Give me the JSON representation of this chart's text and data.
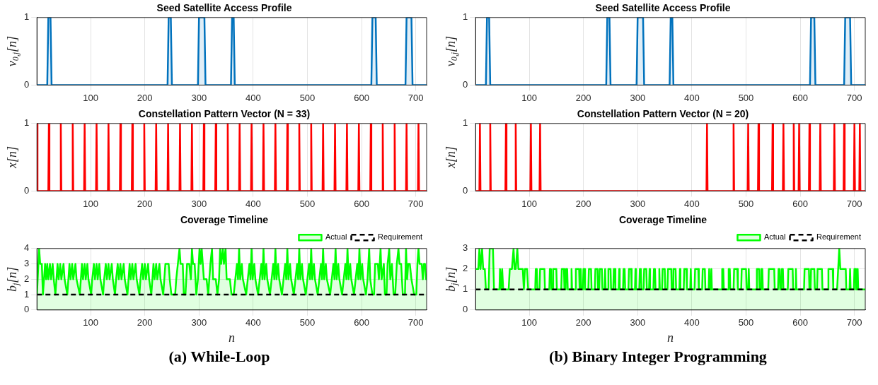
{
  "chart_data": [
    {
      "type": "area",
      "title": "Seed Satellite Access Profile",
      "ylabel": "v$_{0,j}$[n]",
      "xlim": [
        1,
        720
      ],
      "xticks": [
        100,
        200,
        300,
        400,
        500,
        600,
        700
      ],
      "ylim": [
        0,
        1
      ],
      "yticks": [
        0,
        1
      ],
      "grid": true,
      "marker": "none",
      "series": [
        {
          "color": "#0072bd",
          "x": [
            1,
            20,
            22,
            26,
            28,
            242,
            244,
            248,
            250,
            298,
            300,
            310,
            312,
            359,
            361,
            364,
            366,
            618,
            620,
            626,
            628,
            681,
            683,
            692,
            694,
            720
          ],
          "values": [
            0,
            0,
            1,
            1,
            0,
            0,
            1,
            1,
            0,
            0,
            1,
            1,
            0,
            0,
            1,
            1,
            0,
            0,
            1,
            1,
            0,
            0,
            1,
            1,
            0,
            0
          ]
        }
      ]
    },
    {
      "type": "area",
      "title": "Seed Satellite Access Profile",
      "ylabel": "v$_{0,j}$[n]",
      "xlim": [
        1,
        720
      ],
      "xticks": [
        100,
        200,
        300,
        400,
        500,
        600,
        700
      ],
      "ylim": [
        0,
        1
      ],
      "yticks": [
        0,
        1
      ],
      "grid": true,
      "marker": "none",
      "series": [
        {
          "color": "#0072bd",
          "x": [
            1,
            20,
            22,
            26,
            28,
            242,
            244,
            248,
            250,
            298,
            300,
            310,
            312,
            359,
            361,
            364,
            366,
            618,
            620,
            626,
            628,
            681,
            683,
            692,
            694,
            720
          ],
          "values": [
            0,
            0,
            1,
            1,
            0,
            0,
            1,
            1,
            0,
            0,
            1,
            1,
            0,
            0,
            1,
            1,
            0,
            0,
            1,
            1,
            0,
            0,
            1,
            1,
            0,
            0
          ]
        }
      ]
    },
    {
      "type": "line",
      "title": "Constellation Pattern Vector (N = 33)",
      "ylabel": "x[n]",
      "xlim": [
        1,
        720
      ],
      "xticks": [
        100,
        200,
        300,
        400,
        500,
        600,
        700
      ],
      "ylim": [
        0,
        1
      ],
      "yticks": [
        0,
        1
      ],
      "grid": true,
      "marker": "none",
      "series": [
        {
          "color": "#ff0000",
          "x": [
            1,
            2,
            22,
            23,
            24,
            44,
            45,
            46,
            66,
            67,
            68,
            88,
            89,
            90,
            110,
            111,
            112,
            132,
            133,
            134,
            154,
            155,
            156,
            176,
            177,
            178,
            198,
            199,
            200,
            220,
            221,
            222,
            242,
            243,
            244,
            264,
            265,
            266,
            286,
            287,
            288,
            308,
            309,
            310,
            330,
            331,
            332,
            352,
            353,
            354,
            374,
            375,
            376,
            396,
            397,
            398,
            418,
            419,
            420,
            440,
            441,
            442,
            462,
            463,
            464,
            484,
            485,
            486,
            506,
            507,
            508,
            528,
            529,
            530,
            550,
            551,
            552,
            572,
            573,
            574,
            594,
            595,
            596,
            616,
            617,
            618,
            638,
            639,
            640,
            660,
            661,
            662,
            682,
            683,
            684,
            704,
            705,
            706,
            720
          ],
          "values": [
            1,
            0,
            0,
            1,
            0,
            0,
            1,
            0,
            0,
            1,
            0,
            0,
            1,
            0,
            0,
            1,
            0,
            0,
            1,
            0,
            0,
            1,
            0,
            0,
            1,
            0,
            0,
            1,
            0,
            0,
            1,
            0,
            0,
            1,
            0,
            0,
            1,
            0,
            0,
            1,
            0,
            0,
            1,
            0,
            0,
            1,
            0,
            0,
            1,
            0,
            0,
            1,
            0,
            0,
            1,
            0,
            0,
            1,
            0,
            0,
            1,
            0,
            0,
            1,
            0,
            0,
            1,
            0,
            0,
            1,
            0,
            0,
            1,
            0,
            0,
            1,
            0,
            0,
            1,
            0,
            0,
            1,
            0,
            0,
            1,
            0,
            0,
            1,
            0,
            0,
            1,
            0,
            0,
            1,
            0,
            0,
            1,
            0,
            0
          ]
        }
      ]
    },
    {
      "type": "line",
      "title": "Constellation Pattern Vector (N = 20)",
      "ylabel": "x[n]",
      "xlim": [
        1,
        720
      ],
      "xticks": [
        100,
        200,
        300,
        400,
        500,
        600,
        700
      ],
      "ylim": [
        0,
        1
      ],
      "yticks": [
        0,
        1
      ],
      "grid": true,
      "marker": "none",
      "series": [
        {
          "color": "#ff0000",
          "x": [
            1,
            8,
            9,
            10,
            27,
            28,
            29,
            56,
            57,
            58,
            74,
            75,
            76,
            102,
            103,
            104,
            119,
            120,
            121,
            427,
            428,
            429,
            476,
            477,
            478,
            503,
            504,
            505,
            522,
            523,
            524,
            548,
            549,
            550,
            568,
            569,
            570,
            587,
            588,
            589,
            597,
            598,
            599,
            616,
            617,
            618,
            636,
            637,
            638,
            662,
            663,
            664,
            680,
            681,
            682,
            699,
            700,
            701,
            709,
            710,
            711,
            720
          ],
          "values": [
            0,
            0,
            1,
            0,
            0,
            1,
            0,
            0,
            1,
            0,
            0,
            1,
            0,
            0,
            1,
            0,
            0,
            1,
            0,
            0,
            1,
            0,
            0,
            1,
            0,
            0,
            1,
            0,
            0,
            1,
            0,
            0,
            1,
            0,
            0,
            1,
            0,
            0,
            1,
            0,
            0,
            1,
            0,
            0,
            1,
            0,
            0,
            1,
            0,
            0,
            1,
            0,
            0,
            1,
            0,
            0,
            1,
            0,
            0,
            1,
            0,
            0
          ]
        }
      ]
    },
    {
      "type": "area",
      "title": "Coverage Timeline",
      "xlabel": "n",
      "ylabel": "b$_{j}$[n]",
      "xlim": [
        1,
        720
      ],
      "xticks": [
        100,
        200,
        300,
        400,
        500,
        600,
        700
      ],
      "ylim": [
        0,
        4
      ],
      "yticks": [
        0,
        1,
        2,
        3,
        4
      ],
      "grid": true,
      "marker": "none",
      "legend": "top right",
      "annotations": [
        "(a) While-Loop"
      ],
      "series": [
        {
          "name": "Actual",
          "color": "#00ff00",
          "x": [
            1,
            5,
            7,
            10,
            12,
            14,
            16,
            18,
            20,
            22,
            25,
            27,
            30,
            32,
            35,
            37,
            39,
            41,
            44,
            46,
            50,
            52,
            57,
            59,
            61,
            63,
            66,
            68,
            72,
            74,
            80,
            82,
            84,
            86,
            89,
            91,
            94,
            96,
            101,
            103,
            106,
            108,
            111,
            113,
            116,
            118,
            123,
            125,
            128,
            130,
            133,
            135,
            139,
            141,
            145,
            147,
            150,
            152,
            155,
            157,
            161,
            163,
            168,
            170,
            172,
            174,
            177,
            179,
            183,
            185,
            190,
            192,
            195,
            197,
            200,
            202,
            206,
            208,
            212,
            214,
            216,
            218,
            221,
            223,
            227,
            229,
            234,
            236,
            238,
            244,
            246,
            249,
            256,
            258,
            261,
            264,
            266,
            270,
            272,
            275,
            278,
            282,
            285,
            287,
            289,
            292,
            295,
            298,
            301,
            303,
            305,
            307,
            309,
            314,
            317,
            319,
            321,
            324,
            326,
            331,
            334,
            337,
            339,
            341,
            344,
            346,
            349,
            351,
            357,
            360,
            364,
            367,
            370,
            372,
            374,
            376,
            379,
            381,
            387,
            390,
            393,
            395,
            397,
            399,
            402,
            404,
            409,
            412,
            415,
            417,
            419,
            421,
            424,
            426,
            431,
            434,
            437,
            439,
            441,
            443,
            446,
            448,
            453,
            456,
            459,
            461,
            463,
            465,
            468,
            470,
            475,
            478,
            481,
            483,
            485,
            487,
            490,
            492,
            497,
            500,
            503,
            505,
            507,
            509,
            512,
            514,
            519,
            522,
            525,
            527,
            529,
            531,
            534,
            536,
            542,
            545,
            548,
            550,
            552,
            554,
            557,
            559,
            564,
            567,
            570,
            572,
            574,
            576,
            579,
            581,
            586,
            589,
            592,
            594,
            596,
            598,
            601,
            603,
            608,
            611,
            614,
            616,
            620,
            623,
            625,
            630,
            632,
            635,
            637,
            641,
            643,
            646,
            648,
            651,
            653,
            656,
            659,
            662,
            665,
            668,
            670,
            673,
            676,
            680,
            682,
            684,
            686,
            689,
            692,
            697,
            701,
            703,
            705,
            707,
            711,
            713,
            715,
            717,
            719,
            720
          ],
          "values": [
            1,
            4,
            3,
            3,
            1,
            2,
            3,
            2,
            3,
            2,
            3,
            2,
            3,
            2,
            1,
            2,
            3,
            2,
            3,
            2,
            3,
            2,
            1,
            2,
            3,
            2,
            3,
            2,
            3,
            2,
            1,
            2,
            3,
            2,
            3,
            2,
            3,
            2,
            1,
            2,
            3,
            2,
            3,
            2,
            3,
            2,
            1,
            2,
            3,
            2,
            3,
            2,
            3,
            2,
            1,
            2,
            3,
            2,
            3,
            2,
            3,
            2,
            1,
            2,
            3,
            2,
            3,
            2,
            3,
            2,
            1,
            2,
            3,
            2,
            3,
            2,
            3,
            2,
            1,
            2,
            3,
            2,
            3,
            2,
            3,
            2,
            1,
            2,
            3,
            3,
            2,
            1,
            1,
            2,
            3,
            4,
            3,
            3,
            1,
            1,
            3,
            3,
            2,
            4,
            3,
            3,
            1,
            2,
            4,
            3,
            4,
            3,
            2,
            2,
            1,
            2,
            3,
            4,
            2,
            2,
            1,
            2,
            4,
            3,
            4,
            3,
            4,
            2,
            2,
            1,
            1,
            2,
            3,
            2,
            4,
            2,
            3,
            2,
            1,
            2,
            3,
            2,
            4,
            2,
            3,
            2,
            1,
            2,
            3,
            2,
            4,
            2,
            3,
            2,
            1,
            2,
            3,
            2,
            4,
            2,
            3,
            2,
            1,
            2,
            3,
            2,
            4,
            2,
            3,
            2,
            1,
            2,
            3,
            2,
            4,
            2,
            3,
            2,
            1,
            2,
            3,
            2,
            4,
            2,
            3,
            2,
            1,
            2,
            3,
            2,
            4,
            2,
            3,
            2,
            1,
            2,
            3,
            2,
            4,
            2,
            3,
            2,
            1,
            2,
            3,
            2,
            4,
            2,
            3,
            2,
            1,
            2,
            3,
            2,
            4,
            2,
            3,
            2,
            1,
            2,
            4,
            2,
            1,
            1,
            3,
            3,
            2,
            4,
            2,
            3,
            1,
            1,
            3,
            4,
            2,
            3,
            1,
            1,
            3,
            4,
            3,
            3,
            1,
            1,
            4,
            2,
            3,
            3,
            2,
            1,
            1,
            3,
            4,
            3,
            3,
            2,
            3,
            3,
            2,
            2
          ]
        },
        {
          "name": "Requirement",
          "type": "line",
          "line_style": "dashed",
          "color": "#000000",
          "x": [
            1,
            720
          ],
          "values": [
            1,
            1
          ]
        }
      ]
    },
    {
      "type": "area",
      "title": "Coverage Timeline",
      "xlabel": "n",
      "ylabel": "b$_{j}$[n]",
      "xlim": [
        1,
        720
      ],
      "xticks": [
        100,
        200,
        300,
        400,
        500,
        600,
        700
      ],
      "ylim": [
        0,
        3
      ],
      "yticks": [
        0,
        1,
        2,
        3
      ],
      "grid": true,
      "marker": "none",
      "legend": "top right",
      "annotations": [
        "(b) Binary Integer Programming"
      ],
      "series": [
        {
          "name": "Actual",
          "color": "#00ff00",
          "x": [
            1,
            6,
            8,
            10,
            13,
            15,
            18,
            20,
            25,
            27,
            33,
            35,
            45,
            46,
            48,
            50,
            52,
            62,
            64,
            68,
            71,
            73,
            75,
            78,
            80,
            88,
            90,
            92,
            96,
            98,
            111,
            112,
            114,
            115,
            119,
            120,
            128,
            129,
            137,
            138,
            140,
            141,
            143,
            144,
            150,
            151,
            159,
            160,
            164,
            165,
            167,
            168,
            170,
            171,
            177,
            178,
            179,
            185,
            186,
            192,
            193,
            194,
            195,
            196,
            199,
            200,
            202,
            203,
            209,
            210,
            214,
            215,
            221,
            222,
            226,
            227,
            229,
            230,
            234,
            235,
            239,
            240,
            241,
            245,
            246,
            250,
            251,
            255,
            256,
            258,
            259,
            265,
            266,
            267,
            273,
            274,
            276,
            277,
            283,
            284,
            288,
            289,
            295,
            296,
            297,
            303,
            304,
            306,
            307,
            311,
            312,
            316,
            317,
            321,
            322,
            323,
            329,
            330,
            332,
            333,
            339,
            340,
            341,
            345,
            346,
            350,
            351,
            355,
            356,
            362,
            363,
            365,
            366,
            370,
            371,
            377,
            378,
            379,
            385,
            386,
            390,
            391,
            397,
            398,
            399,
            405,
            406,
            412,
            413,
            419,
            420,
            424,
            425,
            431,
            432,
            433,
            435,
            436,
            437,
            455,
            456,
            458,
            459,
            467,
            468,
            470,
            471,
            477,
            478,
            484,
            485,
            491,
            492,
            500,
            501,
            504,
            505,
            506,
            519,
            520,
            524,
            525,
            527,
            528,
            530,
            531,
            541,
            542,
            552,
            553,
            559,
            560,
            562,
            563,
            565,
            566,
            568,
            569,
            577,
            578,
            586,
            587,
            591,
            592,
            593,
            607,
            608,
            616,
            617,
            619,
            620,
            626,
            627,
            631,
            632,
            640,
            641,
            651,
            652,
            660,
            661,
            668,
            670,
            672,
            674,
            684,
            685,
            691,
            692,
            693,
            699,
            700,
            702,
            703,
            705,
            706,
            707,
            720
          ],
          "values": [
            2,
            2,
            3,
            2,
            3,
            2,
            2,
            1,
            1,
            3,
            3,
            1,
            1,
            2,
            1,
            2,
            1,
            1,
            2,
            2,
            3,
            2,
            2,
            3,
            2,
            2,
            1,
            2,
            2,
            1,
            1,
            2,
            2,
            1,
            1,
            2,
            2,
            1,
            1,
            2,
            2,
            1,
            1,
            2,
            2,
            1,
            1,
            2,
            2,
            1,
            1,
            2,
            2,
            1,
            1,
            2,
            1,
            1,
            2,
            2,
            1,
            1,
            2,
            1,
            1,
            2,
            2,
            1,
            1,
            2,
            2,
            1,
            1,
            2,
            2,
            1,
            1,
            2,
            2,
            1,
            1,
            2,
            1,
            1,
            2,
            2,
            1,
            1,
            2,
            2,
            1,
            1,
            2,
            1,
            1,
            2,
            2,
            1,
            1,
            2,
            2,
            1,
            1,
            2,
            1,
            1,
            2,
            2,
            1,
            1,
            2,
            2,
            1,
            1,
            2,
            1,
            1,
            2,
            2,
            1,
            1,
            2,
            1,
            1,
            2,
            2,
            1,
            1,
            2,
            2,
            1,
            1,
            2,
            2,
            1,
            1,
            2,
            1,
            1,
            2,
            2,
            1,
            1,
            2,
            1,
            1,
            2,
            2,
            1,
            1,
            2,
            2,
            1,
            1,
            2,
            1,
            1,
            2,
            1,
            1,
            2,
            2,
            1,
            1,
            2,
            2,
            1,
            1,
            2,
            2,
            1,
            1,
            2,
            2,
            1,
            1,
            2,
            1,
            1,
            2,
            2,
            1,
            1,
            2,
            2,
            1,
            1,
            2,
            2,
            1,
            1,
            2,
            2,
            1,
            1,
            2,
            2,
            1,
            1,
            2,
            2,
            1,
            1,
            2,
            1,
            1,
            2,
            2,
            1,
            1,
            2,
            2,
            1,
            1,
            2,
            2,
            1,
            1,
            2,
            2,
            1,
            1,
            2,
            3,
            2,
            2,
            1,
            1,
            2,
            1,
            1,
            2,
            2,
            1,
            1,
            2,
            1,
            1
          ]
        },
        {
          "name": "Requirement",
          "type": "line",
          "line_style": "dashed",
          "color": "#000000",
          "x": [
            1,
            720
          ],
          "values": [
            1,
            1
          ]
        }
      ]
    }
  ]
}
